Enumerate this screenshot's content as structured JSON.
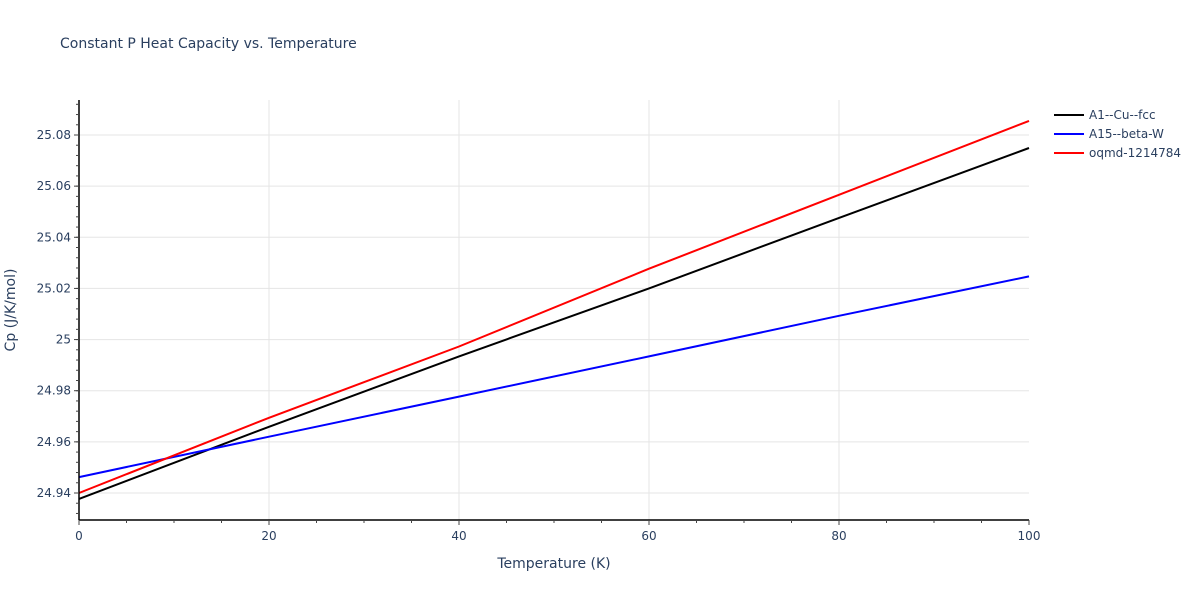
{
  "chart_data": {
    "type": "line",
    "title": "Constant P Heat Capacity vs. Temperature",
    "xlabel": "Temperature (K)",
    "ylabel": "Cp (J/K/mol)",
    "xlim": [
      0,
      100
    ],
    "ylim": [
      24.93,
      25.093
    ],
    "x_ticks": [
      0,
      20,
      40,
      60,
      80,
      100
    ],
    "x_tick_labels": [
      "0",
      "20",
      "40",
      "60",
      "80",
      "100"
    ],
    "y_ticks": [
      24.94,
      24.96,
      24.98,
      25.0,
      25.02,
      25.04,
      25.06,
      25.08
    ],
    "y_tick_labels": [
      "24.94",
      "24.96",
      "24.98",
      "25",
      "25.02",
      "25.04",
      "25.06",
      "25.08"
    ],
    "grid": true,
    "legend_position": "right",
    "x": [
      0,
      20,
      40,
      60,
      80,
      100
    ],
    "series": [
      {
        "name": "A1--Cu--fcc",
        "color": "#000000",
        "values": [
          24.9377,
          24.9659,
          24.9934,
          25.02,
          25.0476,
          25.0749
        ]
      },
      {
        "name": "A15--beta-W",
        "color": "#0000ff",
        "values": [
          24.9462,
          24.962,
          24.9777,
          24.9934,
          25.0093,
          25.0247
        ]
      },
      {
        "name": "oqmd-1214784",
        "color": "#ff0000",
        "values": [
          24.94,
          24.9694,
          24.9973,
          25.0277,
          25.0566,
          25.0855
        ]
      }
    ]
  }
}
